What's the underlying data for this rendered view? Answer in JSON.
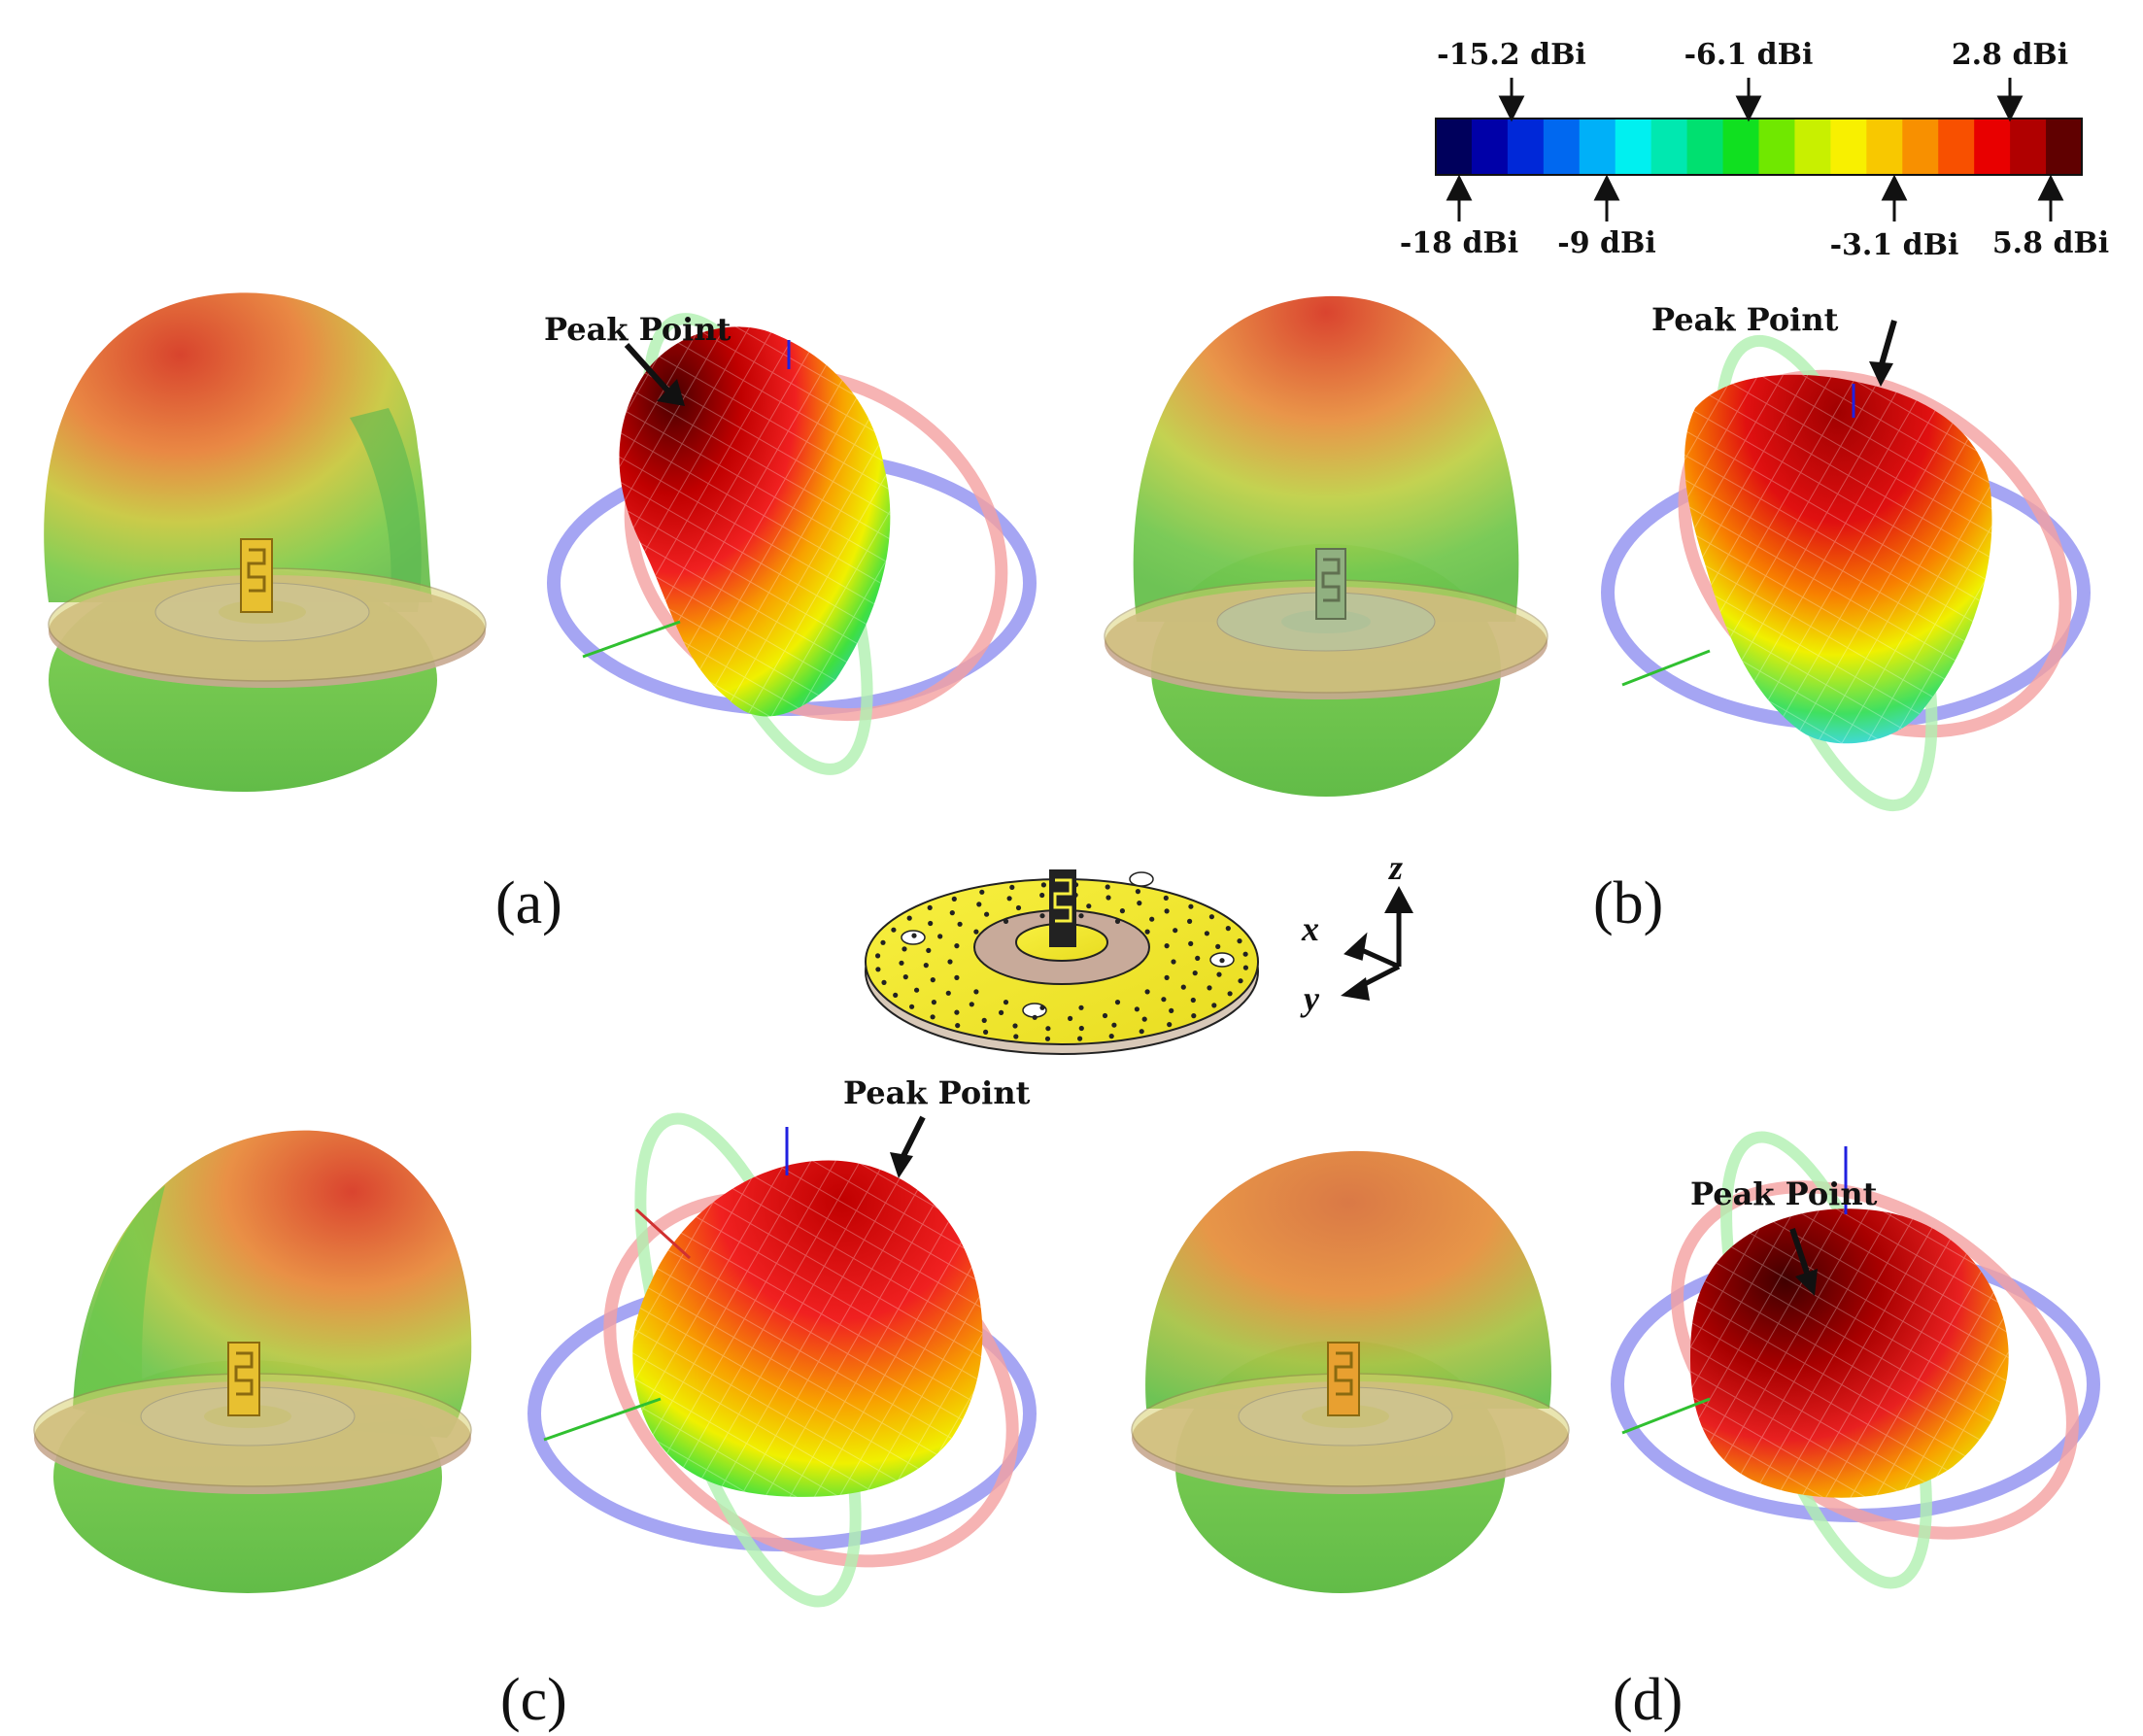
{
  "colorbar": {
    "stops": [
      "#00005c",
      "#0000a8",
      "#0028d8",
      "#0068f0",
      "#00b0f8",
      "#00f0f0",
      "#00e8b0",
      "#00e070",
      "#10e020",
      "#70e800",
      "#c8f000",
      "#f8f000",
      "#f8c800",
      "#f89000",
      "#f85000",
      "#e80000",
      "#b00000",
      "#600000"
    ],
    "top_labels": [
      "-15.2 dBi",
      "-6.1 dBi",
      "2.8 dBi"
    ],
    "bottom_labels": [
      "-18 dBi",
      "-9 dBi",
      "-3.1 dBi",
      "5.8 dBi"
    ]
  },
  "panels": [
    {
      "letter": "(a)",
      "peak_label": "Peak Point"
    },
    {
      "letter": "(b)",
      "peak_label": "Peak Point"
    },
    {
      "letter": "(c)",
      "peak_label": "Peak Point"
    },
    {
      "letter": "(d)",
      "peak_label": "Peak Point"
    }
  ],
  "axes": {
    "x": "x",
    "y": "y",
    "z": "z"
  },
  "colors": {
    "pattern_red": "#d83020",
    "pattern_orange": "#e88a3a",
    "pattern_green": "#6cc84a",
    "ring_blue": "#8f8ff0",
    "ring_red": "#f4a0a0",
    "ring_green": "#b0f0b0",
    "disc_yellow": "#f4ec30",
    "disc_copper": "#c8aa9a"
  }
}
